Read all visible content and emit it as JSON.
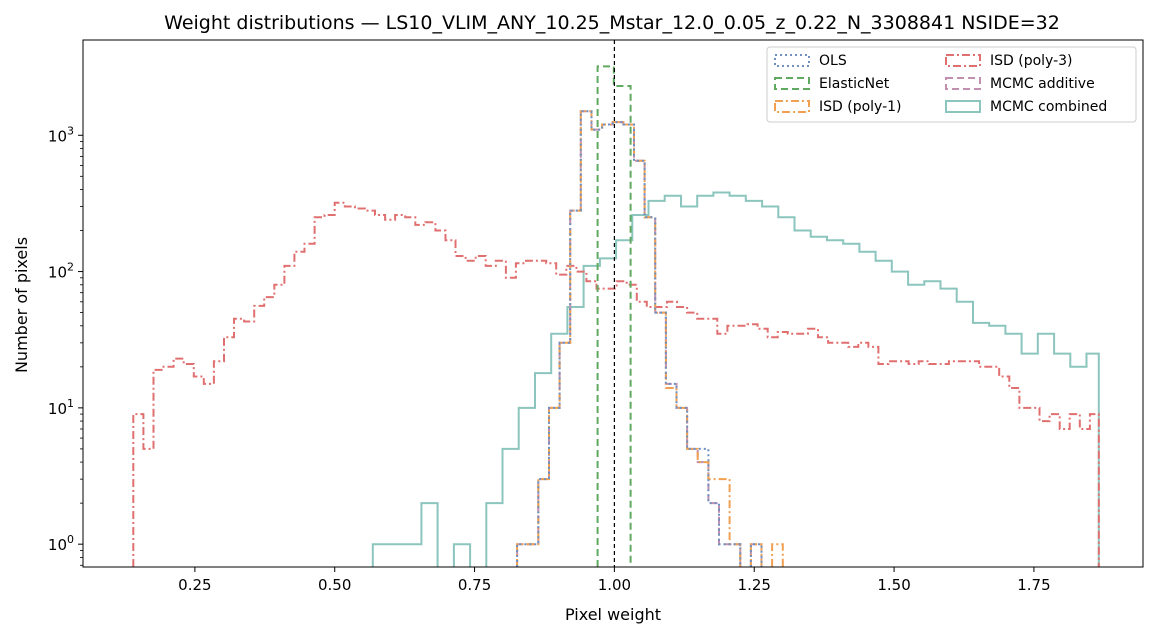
{
  "chart_data": {
    "type": "histogram",
    "title": "Weight distributions — LS10_VLIM_ANY_10.25_Mstar_12.0_0.05_z_0.22_N_3308841  NSIDE=32",
    "xlabel": "Pixel weight",
    "ylabel": "Number of pixels",
    "xlim": [
      0.05,
      1.945
    ],
    "ylim": [
      0.68,
      5000
    ],
    "yscale": "log",
    "xticks": [
      0.25,
      0.5,
      0.75,
      1.0,
      1.25,
      1.5,
      1.75
    ],
    "xtick_labels": [
      "0.25",
      "0.50",
      "0.75",
      "1.00",
      "1.25",
      "1.50",
      "1.75"
    ],
    "yticks": [
      1,
      10,
      100,
      1000
    ],
    "ytick_labels": [
      "10",
      "10",
      "10",
      "10"
    ],
    "ytick_exponents": [
      "0",
      "1",
      "2",
      "3"
    ],
    "reference_line": {
      "x": 1.0,
      "color": "#000000",
      "style": "dashed"
    },
    "legend": {
      "position": "upper right",
      "columns": 2
    },
    "series": [
      {
        "name": "MCMC combined",
        "color": "#8cc5bd",
        "linestyle": "solid",
        "edges": [
          0.568,
          0.597,
          0.626,
          0.655,
          0.684,
          0.713,
          0.742,
          0.771,
          0.8,
          0.829,
          0.858,
          0.887,
          0.916,
          0.945,
          0.974,
          1.003,
          1.032,
          1.061,
          1.09,
          1.119,
          1.148,
          1.177,
          1.206,
          1.235,
          1.264,
          1.293,
          1.322,
          1.351,
          1.38,
          1.409,
          1.438,
          1.467,
          1.496,
          1.525,
          1.554,
          1.583,
          1.612,
          1.641,
          1.67,
          1.699,
          1.728,
          1.757,
          1.786,
          1.815,
          1.844,
          1.866
        ],
        "counts": [
          1,
          1,
          1,
          2,
          0,
          1,
          0,
          2,
          5,
          10,
          18,
          35,
          55,
          110,
          125,
          170,
          260,
          330,
          360,
          300,
          360,
          380,
          360,
          330,
          300,
          250,
          200,
          180,
          170,
          160,
          140,
          120,
          100,
          80,
          85,
          75,
          60,
          42,
          40,
          35,
          25,
          35,
          25,
          20,
          25
        ]
      },
      {
        "name": "ISD (poly-3)",
        "color": "#e07070",
        "linestyle": "dashdot",
        "edges": [
          0.14,
          0.158,
          0.176,
          0.194,
          0.212,
          0.23,
          0.248,
          0.266,
          0.284,
          0.302,
          0.32,
          0.338,
          0.356,
          0.374,
          0.392,
          0.41,
          0.428,
          0.446,
          0.464,
          0.482,
          0.5,
          0.518,
          0.536,
          0.554,
          0.572,
          0.59,
          0.608,
          0.626,
          0.644,
          0.662,
          0.68,
          0.698,
          0.716,
          0.734,
          0.752,
          0.77,
          0.788,
          0.806,
          0.824,
          0.842,
          0.86,
          0.878,
          0.896,
          0.914,
          0.932,
          0.95,
          0.968,
          0.986,
          1.004,
          1.022,
          1.04,
          1.058,
          1.076,
          1.094,
          1.112,
          1.13,
          1.148,
          1.166,
          1.184,
          1.202,
          1.22,
          1.238,
          1.256,
          1.274,
          1.292,
          1.31,
          1.328,
          1.346,
          1.364,
          1.382,
          1.4,
          1.418,
          1.436,
          1.454,
          1.472,
          1.49,
          1.508,
          1.526,
          1.544,
          1.562,
          1.58,
          1.598,
          1.616,
          1.634,
          1.652,
          1.67,
          1.688,
          1.706,
          1.724,
          1.742,
          1.76,
          1.778,
          1.796,
          1.814,
          1.832,
          1.85,
          1.866
        ],
        "counts": [
          9,
          5,
          19,
          20,
          23,
          21,
          17,
          15,
          22,
          33,
          45,
          43,
          56,
          65,
          80,
          110,
          140,
          160,
          250,
          260,
          320,
          300,
          290,
          280,
          260,
          240,
          260,
          250,
          220,
          230,
          200,
          170,
          130,
          120,
          130,
          110,
          120,
          90,
          115,
          120,
          120,
          115,
          95,
          110,
          100,
          85,
          75,
          75,
          85,
          80,
          60,
          55,
          55,
          60,
          55,
          50,
          45,
          45,
          35,
          40,
          40,
          41,
          38,
          33,
          36,
          35,
          35,
          38,
          33,
          30,
          30,
          28,
          30,
          28,
          21,
          22,
          22,
          21,
          22,
          21,
          21,
          22,
          22,
          22,
          20,
          20,
          17,
          14,
          10,
          10,
          8,
          9,
          7,
          9,
          7,
          9
        ]
      },
      {
        "name": "MCMC additive",
        "color": "#c18fb0",
        "linestyle": "dashed",
        "edges": [
          0.826,
          0.845,
          0.864,
          0.883,
          0.902,
          0.921,
          0.94,
          0.959,
          0.978,
          0.997,
          1.016,
          1.035,
          1.054,
          1.073,
          1.092,
          1.111,
          1.13,
          1.149,
          1.168,
          1.187,
          1.206,
          1.225,
          1.244,
          1.263,
          1.282,
          1.301,
          1.32
        ],
        "counts": [
          1,
          1,
          3,
          10,
          30,
          280,
          1500,
          1100,
          1200,
          1250,
          1200,
          650,
          250,
          50,
          15,
          10,
          5,
          4,
          2,
          1,
          1,
          0,
          1,
          0,
          0,
          0
        ]
      },
      {
        "name": "ISD (poly-1)",
        "color": "#f0a050",
        "linestyle": "dashdot",
        "edges": [
          0.826,
          0.845,
          0.864,
          0.883,
          0.902,
          0.921,
          0.94,
          0.959,
          0.978,
          0.997,
          1.016,
          1.035,
          1.054,
          1.073,
          1.092,
          1.111,
          1.13,
          1.149,
          1.168,
          1.187,
          1.206,
          1.225,
          1.244,
          1.263,
          1.282,
          1.301,
          1.32
        ],
        "counts": [
          1,
          1,
          3,
          10,
          30,
          280,
          1500,
          1100,
          1200,
          1250,
          1200,
          650,
          250,
          50,
          14,
          10,
          5,
          4,
          3,
          3,
          1,
          0,
          1,
          0,
          1,
          0
        ]
      },
      {
        "name": "OLS",
        "color": "#6e8fbf",
        "linestyle": "dotted",
        "edges": [
          0.826,
          0.845,
          0.864,
          0.883,
          0.902,
          0.921,
          0.94,
          0.959,
          0.978,
          0.997,
          1.016,
          1.035,
          1.054,
          1.073,
          1.092,
          1.111,
          1.13,
          1.149,
          1.168,
          1.187,
          1.206,
          1.225,
          1.244,
          1.263,
          1.282,
          1.301,
          1.32
        ],
        "counts": [
          1,
          1,
          3,
          10,
          30,
          280,
          1500,
          1100,
          1200,
          1250,
          1200,
          650,
          250,
          50,
          15,
          10,
          5,
          5,
          2,
          1,
          1,
          0,
          1,
          0,
          0,
          0
        ]
      },
      {
        "name": "ElasticNet",
        "color": "#60aa60",
        "linestyle": "dashed",
        "edges": [
          0.97,
          0.999,
          1.029
        ],
        "counts": [
          3200,
          2300
        ]
      }
    ],
    "legend_order": [
      "OLS",
      "ElasticNet",
      "ISD (poly-1)",
      "ISD (poly-3)",
      "MCMC additive",
      "MCMC combined"
    ]
  }
}
